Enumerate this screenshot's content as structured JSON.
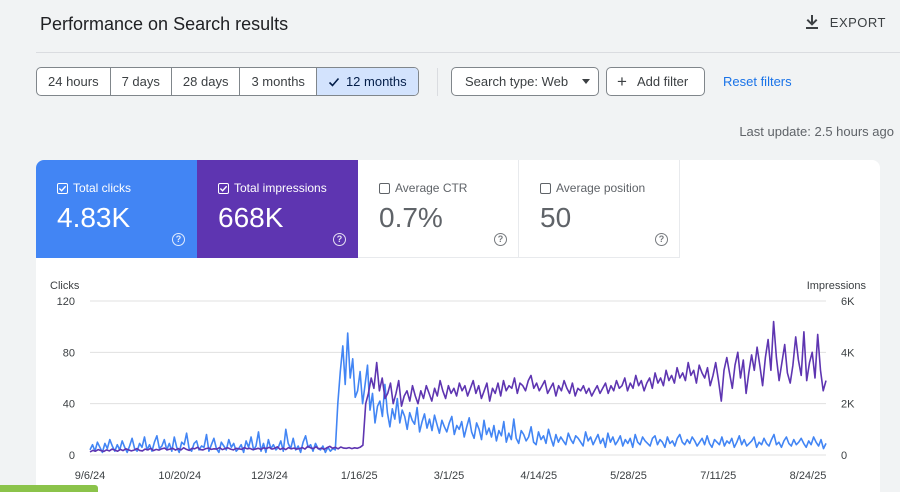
{
  "header": {
    "title": "Performance on Search results",
    "export_label": "EXPORT"
  },
  "date_ranges": [
    {
      "label": "24 hours",
      "selected": false
    },
    {
      "label": "7 days",
      "selected": false
    },
    {
      "label": "28 days",
      "selected": false
    },
    {
      "label": "3 months",
      "selected": false
    },
    {
      "label": "12 months",
      "selected": true
    }
  ],
  "filters": {
    "search_type": "Search type: Web",
    "add_filter": "Add filter",
    "reset": "Reset filters"
  },
  "last_update": "Last update: 2.5 hours ago",
  "metrics": [
    {
      "label": "Total clicks",
      "value": "4.83K",
      "checked": true,
      "color": "#4285f4"
    },
    {
      "label": "Total impressions",
      "value": "668K",
      "checked": true,
      "color": "#5e35b1"
    },
    {
      "label": "Average CTR",
      "value": "0.7%",
      "checked": false
    },
    {
      "label": "Average position",
      "value": "50",
      "checked": false
    }
  ],
  "colors": {
    "clicks": "#4285f4",
    "impressions": "#5e35b1",
    "accent": "#1a73e8"
  },
  "chart_data": {
    "type": "line",
    "ylabel": "Clicks",
    "y2label": "Impressions",
    "ylim": [
      0,
      120
    ],
    "y2lim": [
      0,
      6000
    ],
    "y_ticks": [
      "0",
      "40",
      "80",
      "120"
    ],
    "y2_ticks": [
      "0",
      "2K",
      "4K",
      "6K"
    ],
    "x_ticks": [
      "9/6/24",
      "10/20/24",
      "12/3/24",
      "1/16/25",
      "3/1/25",
      "4/14/25",
      "5/28/25",
      "7/11/25",
      "8/24/25"
    ],
    "grid": true,
    "series": [
      {
        "name": "Clicks",
        "color": "#4285f4",
        "axis": "left",
        "values": [
          4,
          8,
          3,
          10,
          6,
          2,
          9,
          5,
          12,
          7,
          3,
          8,
          4,
          11,
          6,
          2,
          7,
          13,
          5,
          3,
          9,
          6,
          14,
          4,
          8,
          3,
          10,
          15,
          5,
          7,
          12,
          4,
          9,
          3,
          14,
          6,
          2,
          10,
          8,
          17,
          5,
          3,
          9,
          11,
          4,
          7,
          6,
          16,
          3,
          8,
          13,
          5,
          2,
          10,
          7,
          4,
          12,
          6,
          9,
          3,
          5,
          8,
          2,
          11,
          6,
          14,
          4,
          7,
          18,
          3,
          9,
          2,
          12,
          5,
          8,
          4,
          6,
          11,
          3,
          20,
          9,
          5,
          13,
          4,
          7,
          2,
          10,
          15,
          6,
          8,
          3,
          9,
          5,
          4,
          7,
          2,
          6,
          3,
          5,
          4,
          40,
          65,
          85,
          55,
          95,
          60,
          75,
          45,
          50,
          65,
          40,
          55,
          70,
          35,
          48,
          25,
          38,
          42,
          30,
          55,
          33,
          22,
          36,
          28,
          44,
          25,
          35,
          30,
          20,
          33,
          27,
          24,
          37,
          18,
          26,
          32,
          21,
          28,
          19,
          31,
          24,
          17,
          27,
          22,
          18,
          25,
          30,
          16,
          23,
          20,
          26,
          14,
          22,
          29,
          18,
          13,
          25,
          20,
          12,
          27,
          16,
          21,
          14,
          23,
          11,
          19,
          15,
          26,
          10,
          17,
          12,
          28,
          13,
          9,
          19,
          16,
          11,
          14,
          22,
          10,
          8,
          18,
          12,
          15,
          9,
          20,
          13,
          7,
          16,
          10,
          14,
          11,
          8,
          17,
          12,
          9,
          15,
          13,
          10,
          7,
          18,
          11,
          14,
          8,
          12,
          16,
          9,
          13,
          6,
          17,
          10,
          14,
          8,
          11,
          15,
          7,
          12,
          9,
          13,
          6,
          16,
          10,
          8,
          14,
          11,
          9,
          7,
          13,
          15,
          8,
          12,
          10,
          6,
          14,
          9,
          11,
          7,
          13,
          16,
          10,
          8,
          12,
          9,
          14,
          11,
          7,
          10,
          13,
          8,
          15,
          9,
          6,
          12,
          10,
          8,
          14,
          7,
          11,
          9,
          13,
          6,
          10,
          15,
          8,
          12,
          7,
          9,
          11,
          14,
          6,
          10,
          8,
          13,
          9,
          7,
          12,
          16,
          8,
          10,
          6,
          11,
          14,
          9,
          7,
          12,
          8,
          10,
          13,
          9,
          6,
          11,
          8,
          14,
          10,
          7,
          12,
          5,
          9
        ]
      },
      {
        "name": "Impressions",
        "color": "#5e35b1",
        "axis": "right",
        "values": [
          120,
          180,
          150,
          210,
          170,
          140,
          200,
          160,
          230,
          190,
          150,
          220,
          170,
          240,
          200,
          160,
          190,
          250,
          180,
          160,
          230,
          200,
          260,
          170,
          220,
          190,
          240,
          270,
          200,
          230,
          260,
          190,
          250,
          200,
          280,
          220,
          180,
          260,
          240,
          300,
          210,
          200,
          250,
          270,
          220,
          240,
          230,
          290,
          210,
          250,
          280,
          230,
          200,
          260,
          240,
          220,
          290,
          240,
          260,
          210,
          230,
          260,
          220,
          280,
          250,
          300,
          230,
          260,
          320,
          220,
          270,
          210,
          290,
          240,
          270,
          230,
          250,
          290,
          230,
          340,
          280,
          250,
          320,
          240,
          270,
          220,
          290,
          340,
          260,
          300,
          240,
          310,
          270,
          260,
          290,
          250,
          280,
          260,
          300,
          380,
          2000,
          2400,
          3000,
          2600,
          3600,
          2500,
          3000,
          2200,
          2400,
          2800,
          2000,
          2400,
          2900,
          1900,
          2300,
          2500,
          2100,
          2700,
          2300,
          2000,
          2500,
          2200,
          2700,
          2400,
          2100,
          2600,
          2300,
          2900,
          2500,
          2200,
          2700,
          2400,
          2600,
          2300,
          2800,
          2500,
          2700,
          2300,
          2600,
          2900,
          2400,
          2700,
          2200,
          2500,
          2800,
          2100,
          2600,
          2400,
          2800,
          2300,
          2900,
          2500,
          2700,
          2600,
          3000,
          2400,
          2800,
          2700,
          2500,
          2900,
          3100,
          2600,
          2800,
          2500,
          2700,
          2900,
          2400,
          2600,
          2800,
          2300,
          2700,
          2500,
          2900,
          2600,
          2400,
          2800,
          2300,
          2600,
          2500,
          2700,
          2400,
          2600,
          2300,
          2500,
          2700,
          2400,
          2600,
          2800,
          2400,
          2700,
          2500,
          2900,
          2600,
          2700,
          3000,
          2500,
          2800,
          2600,
          3100,
          2700,
          2900,
          2500,
          2800,
          3000,
          2600,
          3200,
          2800,
          3000,
          2700,
          3300,
          2900,
          3100,
          2800,
          3400,
          3000,
          3200,
          2900,
          3600,
          3100,
          3300,
          2800,
          3500,
          3200,
          3000,
          3400,
          2700,
          3100,
          3600,
          2900,
          2100,
          3300,
          3800,
          3200,
          2600,
          3500,
          4000,
          3000,
          3700,
          2400,
          3200,
          3900,
          3300,
          4200,
          3500,
          2700,
          3800,
          4500,
          3300,
          5200,
          3800,
          2900,
          3600,
          4300,
          3200,
          2800,
          3500,
          4600,
          3700,
          3100,
          4800,
          2900,
          3600,
          4000,
          3000,
          4700,
          3300,
          2500,
          2900
        ]
      }
    ]
  }
}
